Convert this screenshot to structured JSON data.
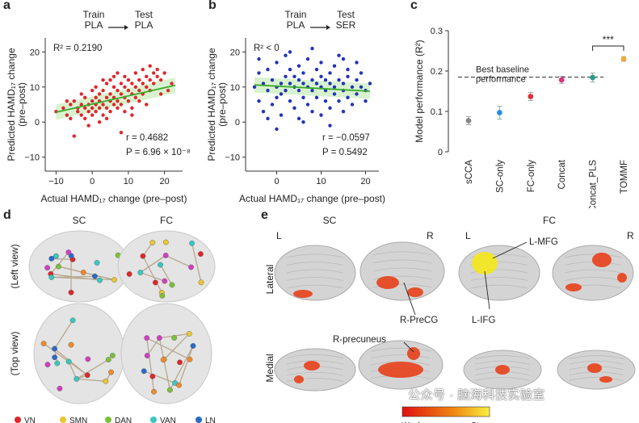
{
  "panels": {
    "a": {
      "label": "a",
      "header_left": "Train\nPLA",
      "header_right": "Test\nPLA",
      "r2_text": "R² = 0.2190",
      "r_text": "r = 0.4682",
      "p_text": "P = 6.96 × 10⁻⁸",
      "xlabel": "Actual HAMD₁₇ change (pre–post)",
      "ylabel": "Predicted HAMD₁₇ change\n(pre–post)",
      "xticks": [
        "−10",
        "0",
        "10",
        "20"
      ],
      "yticks": [
        "20",
        "10",
        "0",
        "−10"
      ]
    },
    "b": {
      "label": "b",
      "header_left": "Train\nPLA",
      "header_right": "Test\nSER",
      "r2_text": "R² < 0",
      "r_text": "r = −0.0597",
      "p_text": "P = 0.5492",
      "xlabel": "Actual HAMD₁₇ change (pre–post)",
      "ylabel": "Predicted HAMD₁₇ change\n(pre–post)",
      "xticks": [
        "0",
        "10",
        "20"
      ],
      "yticks": [
        "20",
        "10",
        "0",
        "−10"
      ]
    },
    "c": {
      "label": "c",
      "ylabel": "Model performance (R²)",
      "baseline_label": "Best baseline\nperformance",
      "sig_label": "***",
      "yticks": [
        "0.3",
        "0.2",
        "0.1",
        "0"
      ]
    },
    "d": {
      "label": "d",
      "col_sc": "SC",
      "col_fc": "FC",
      "row_left": "(Left view)",
      "row_top": "(Top view)"
    },
    "e": {
      "label": "e",
      "col_sc": "SC",
      "col_fc": "FC",
      "row_lateral": "Lateral",
      "row_medial": "Medial",
      "L1": "L",
      "R1": "R",
      "L2": "L",
      "R2": "R",
      "ann_prercg": "R-PreCG",
      "ann_precuneus": "R-precuneus",
      "ann_lmfg": "L-MFG",
      "ann_lifg": "L-IFG",
      "colorbar_weak": "Weak",
      "colorbar_strong": "Strong"
    }
  },
  "legend": [
    "VN",
    "SMN",
    "DAN",
    "VAN",
    "LN"
  ],
  "watermark": "公众号 · 脑海科技实验室",
  "colors": {
    "red_points": "#e0262a",
    "blue_points": "#2233bb",
    "fit_line": "#3aaa2a",
    "ci_band": "#b8e8a8",
    "brain": "#cfcfcf",
    "activation": "#e8401a",
    "activation_yellow": "#f4e81a"
  },
  "chart_data": [
    {
      "type": "scatter",
      "panel": "a",
      "title": "",
      "xlabel": "Actual HAMD17 change (pre–post)",
      "ylabel": "Predicted HAMD17 change (pre–post)",
      "xlim": [
        -13,
        25
      ],
      "ylim": [
        -14,
        24
      ],
      "fit": {
        "x": [
          -10,
          23
        ],
        "y": [
          2.8,
          10.5
        ]
      },
      "stats": {
        "R2": 0.219,
        "r": 0.4682,
        "P": "6.96e-8"
      },
      "points": [
        [
          -10,
          3
        ],
        [
          -8,
          4
        ],
        [
          -7,
          2
        ],
        [
          -6,
          5
        ],
        [
          -6,
          1
        ],
        [
          -5,
          6
        ],
        [
          -5,
          -4
        ],
        [
          -4,
          3
        ],
        [
          -4,
          4
        ],
        [
          -3,
          5
        ],
        [
          -3,
          2
        ],
        [
          -2,
          7
        ],
        [
          -2,
          4
        ],
        [
          -2,
          1
        ],
        [
          -1,
          5
        ],
        [
          -1,
          3
        ],
        [
          0,
          6
        ],
        [
          0,
          4
        ],
        [
          0,
          2
        ],
        [
          0,
          9
        ],
        [
          1,
          5
        ],
        [
          1,
          7
        ],
        [
          1,
          3
        ],
        [
          2,
          4
        ],
        [
          2,
          8
        ],
        [
          2,
          6
        ],
        [
          3,
          5
        ],
        [
          3,
          9
        ],
        [
          3,
          2
        ],
        [
          4,
          7
        ],
        [
          4,
          4
        ],
        [
          4,
          11
        ],
        [
          5,
          6
        ],
        [
          5,
          8
        ],
        [
          5,
          3
        ],
        [
          5,
          12
        ],
        [
          6,
          7
        ],
        [
          6,
          5
        ],
        [
          6,
          10
        ],
        [
          7,
          6
        ],
        [
          7,
          9
        ],
        [
          7,
          4
        ],
        [
          8,
          8
        ],
        [
          8,
          11
        ],
        [
          8,
          5
        ],
        [
          9,
          7
        ],
        [
          9,
          10
        ],
        [
          9,
          13
        ],
        [
          10,
          9
        ],
        [
          10,
          6
        ],
        [
          10,
          12
        ],
        [
          11,
          8
        ],
        [
          11,
          11
        ],
        [
          11,
          4
        ],
        [
          12,
          10
        ],
        [
          12,
          7
        ],
        [
          12,
          14
        ],
        [
          13,
          9
        ],
        [
          13,
          12
        ],
        [
          14,
          11
        ],
        [
          14,
          8
        ],
        [
          14,
          15
        ],
        [
          15,
          10
        ],
        [
          15,
          13
        ],
        [
          16,
          12
        ],
        [
          16,
          9
        ],
        [
          17,
          14
        ],
        [
          17,
          11
        ],
        [
          18,
          13
        ],
        [
          18,
          15
        ],
        [
          19,
          12
        ],
        [
          20,
          14
        ],
        [
          21,
          9
        ],
        [
          22,
          11
        ],
        [
          -7,
          6
        ],
        [
          -3,
          8
        ],
        [
          1,
          10
        ],
        [
          3,
          12
        ],
        [
          6,
          13
        ],
        [
          9,
          3
        ],
        [
          13,
          6
        ],
        [
          16,
          16
        ],
        [
          8,
          -3
        ],
        [
          19,
          8
        ],
        [
          2,
          0
        ],
        [
          -1,
          -1
        ],
        [
          4,
          1
        ],
        [
          11,
          2
        ],
        [
          7,
          14
        ],
        [
          15,
          5
        ]
      ]
    },
    {
      "type": "scatter",
      "panel": "b",
      "title": "",
      "xlabel": "Actual HAMD17 change (pre–post)",
      "ylabel": "Predicted HAMD17 change (pre–post)",
      "xlim": [
        -7,
        23
      ],
      "ylim": [
        -14,
        24
      ],
      "fit": {
        "x": [
          -5,
          21
        ],
        "y": [
          10.6,
          8.8
        ]
      },
      "stats": {
        "R2": "<0",
        "r": -0.0597,
        "P": 0.5492
      },
      "points": [
        [
          -5,
          10
        ],
        [
          -4,
          14
        ],
        [
          -4,
          6
        ],
        [
          -3,
          11
        ],
        [
          -3,
          3
        ],
        [
          -2,
          9
        ],
        [
          -2,
          15
        ],
        [
          -1,
          12
        ],
        [
          -1,
          5
        ],
        [
          0,
          10
        ],
        [
          0,
          7
        ],
        [
          0,
          17
        ],
        [
          1,
          11
        ],
        [
          1,
          8
        ],
        [
          1,
          2
        ],
        [
          2,
          13
        ],
        [
          2,
          9
        ],
        [
          2,
          19
        ],
        [
          3,
          11
        ],
        [
          3,
          6
        ],
        [
          3,
          15
        ],
        [
          4,
          10
        ],
        [
          4,
          13
        ],
        [
          4,
          4
        ],
        [
          5,
          9
        ],
        [
          5,
          12
        ],
        [
          5,
          16
        ],
        [
          5,
          1
        ],
        [
          6,
          11
        ],
        [
          6,
          7
        ],
        [
          6,
          14
        ],
        [
          7,
          10
        ],
        [
          7,
          18
        ],
        [
          7,
          5
        ],
        [
          8,
          12
        ],
        [
          8,
          9
        ],
        [
          8,
          3
        ],
        [
          9,
          11
        ],
        [
          9,
          15
        ],
        [
          9,
          7
        ],
        [
          10,
          10
        ],
        [
          10,
          13
        ],
        [
          10,
          2
        ],
        [
          10,
          17
        ],
        [
          11,
          9
        ],
        [
          11,
          12
        ],
        [
          11,
          6
        ],
        [
          12,
          11
        ],
        [
          12,
          14
        ],
        [
          12,
          -1
        ],
        [
          13,
          10
        ],
        [
          13,
          8
        ],
        [
          13,
          16
        ],
        [
          14,
          12
        ],
        [
          14,
          6
        ],
        [
          14,
          19
        ],
        [
          15,
          11
        ],
        [
          15,
          9
        ],
        [
          15,
          3
        ],
        [
          16,
          13
        ],
        [
          16,
          7
        ],
        [
          16,
          15
        ],
        [
          17,
          10
        ],
        [
          17,
          5
        ],
        [
          18,
          12
        ],
        [
          18,
          8
        ],
        [
          18,
          17
        ],
        [
          19,
          10
        ],
        [
          19,
          14
        ],
        [
          20,
          9
        ],
        [
          20,
          6
        ],
        [
          21,
          11
        ],
        [
          -4,
          18
        ],
        [
          0,
          -2
        ],
        [
          3,
          20
        ],
        [
          8,
          21
        ],
        [
          12,
          4
        ],
        [
          15,
          18
        ],
        [
          -2,
          1
        ],
        [
          6,
          0
        ]
      ]
    },
    {
      "type": "scatter",
      "panel": "c",
      "title": "",
      "xlabel": "",
      "ylabel": "Model performance (R²)",
      "ylim": [
        0,
        0.3
      ],
      "categories": [
        "sCCA",
        "SC-only",
        "FC-only",
        "Concat",
        "Concat_PLS",
        "TOMMF"
      ],
      "values": [
        0.077,
        0.097,
        0.137,
        0.178,
        0.184,
        0.23
      ],
      "errors": [
        0.01,
        0.016,
        0.01,
        0.009,
        0.011,
        0.006
      ],
      "point_colors": [
        "#888888",
        "#2a8fe0",
        "#e0303a",
        "#e0307a",
        "#2a9a8a",
        "#f0a838"
      ],
      "baseline": 0.185
    }
  ]
}
